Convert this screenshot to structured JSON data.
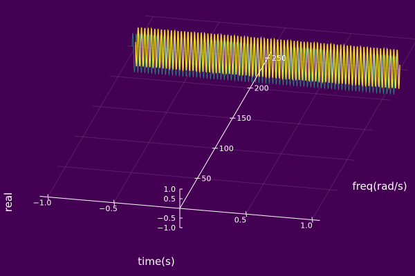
{
  "chart_data": {
    "type": "line",
    "subtype": "3d-waterfall",
    "xlabel": "time(s)",
    "ylabel": "freq(rad/s)",
    "zlabel": "real",
    "xlim": [
      -1.0,
      1.0
    ],
    "ylim": [
      0,
      260
    ],
    "zlim": [
      -1.0,
      1.0
    ],
    "x_ticks": [
      "−1.0",
      "−0.5",
      "0.5",
      "1.0"
    ],
    "y_ticks": [
      "50",
      "100",
      "150",
      "200",
      "250"
    ],
    "z_ticks": [
      "1.0",
      "0.5",
      "−0.5",
      "−1.0"
    ],
    "grid": true,
    "background": "#440154",
    "colormap": "viridis",
    "series": [
      {
        "frequency": 250,
        "function": "cos(freq * time)",
        "note": "frontmost visible trace, yellow (high value)"
      },
      {
        "frequency": 240,
        "function": "cos(freq * time)",
        "note": "adjacent trace, teal/green"
      }
    ],
    "time_range": [
      -1.0,
      1.0
    ]
  }
}
